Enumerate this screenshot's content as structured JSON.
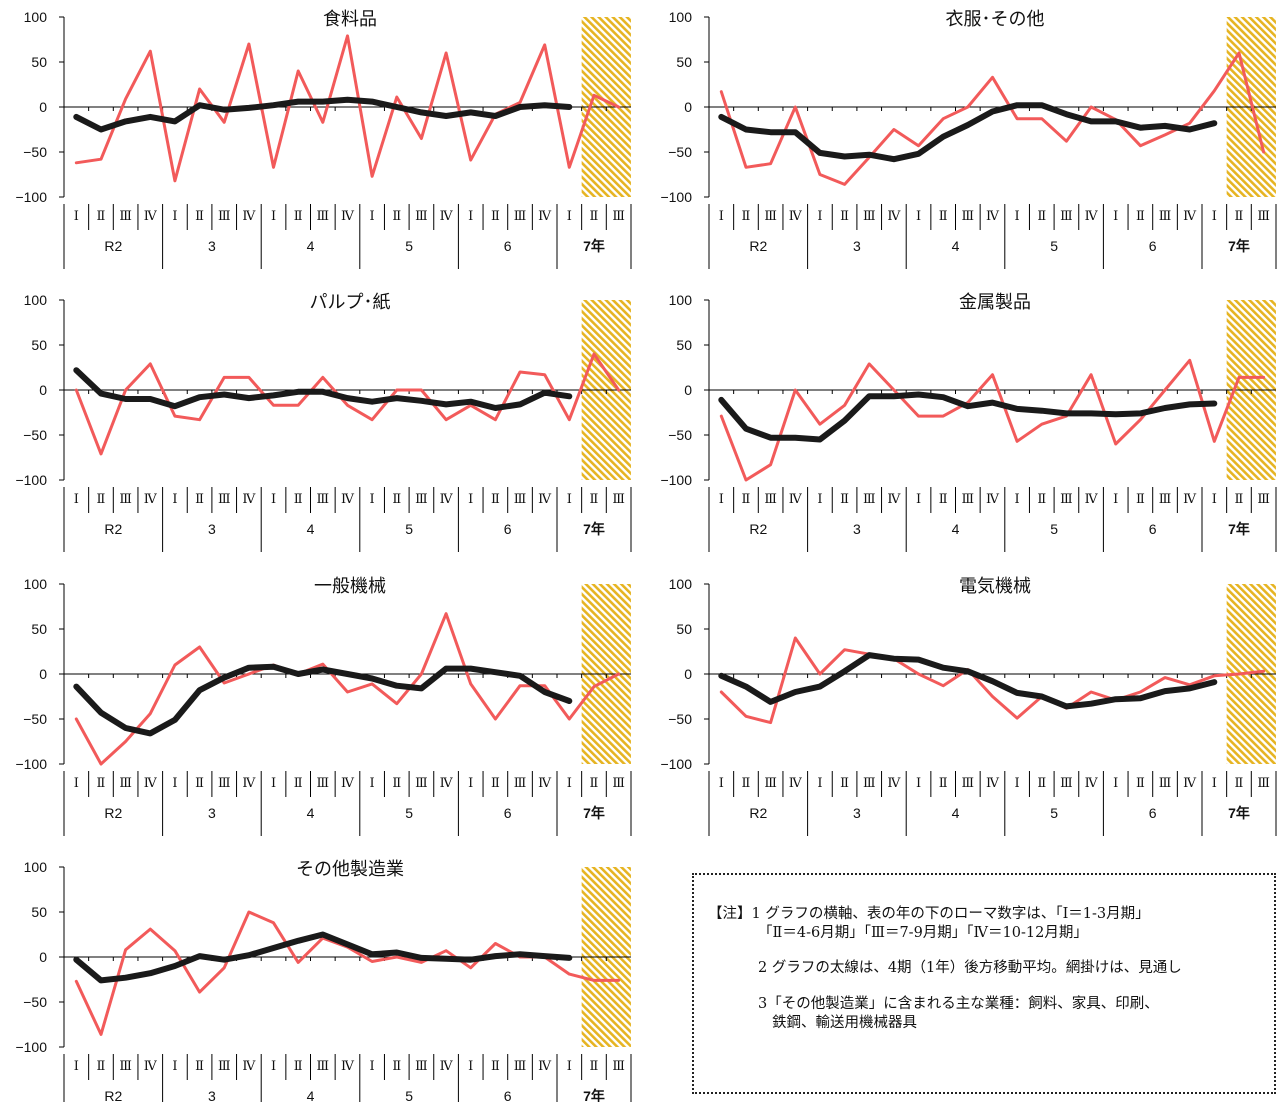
{
  "colors": {
    "actual": "#f25a5a",
    "moving_average": "#1a1a1a",
    "forecast_hatch": "#e6b422"
  },
  "chart_data": [
    {
      "type": "line",
      "title": "食料品",
      "quarter_labels": [
        "Ⅰ",
        "Ⅱ",
        "Ⅲ",
        "Ⅳ",
        "Ⅰ",
        "Ⅱ",
        "Ⅲ",
        "Ⅳ",
        "Ⅰ",
        "Ⅱ",
        "Ⅲ",
        "Ⅳ",
        "Ⅰ",
        "Ⅱ",
        "Ⅲ",
        "Ⅳ",
        "Ⅰ",
        "Ⅱ",
        "Ⅲ",
        "Ⅳ",
        "Ⅰ",
        "Ⅱ",
        "Ⅲ"
      ],
      "year_labels": [
        "R2",
        "3",
        "4",
        "5",
        "6",
        "7年"
      ],
      "ylim": [
        -100,
        100
      ],
      "yticks": [
        100,
        50,
        0,
        -50,
        -100
      ],
      "forecast_quarters": [
        22,
        23
      ],
      "series": [
        {
          "values": [
            -62,
            -58,
            9,
            62,
            -82,
            20,
            -17,
            70,
            -67,
            40,
            -17,
            79,
            -77,
            11,
            -35,
            60,
            -59,
            -8,
            5,
            69,
            -67,
            13,
            0
          ]
        },
        {
          "values": [
            -11,
            -25,
            -16,
            -11,
            -16,
            2,
            -3,
            -1,
            2,
            6,
            6,
            8,
            6,
            0,
            -6,
            -10,
            -6,
            -10,
            0,
            2,
            0
          ]
        }
      ]
    },
    {
      "type": "line",
      "title": "衣服･その他",
      "quarter_labels": [
        "Ⅰ",
        "Ⅱ",
        "Ⅲ",
        "Ⅳ",
        "Ⅰ",
        "Ⅱ",
        "Ⅲ",
        "Ⅳ",
        "Ⅰ",
        "Ⅱ",
        "Ⅲ",
        "Ⅳ",
        "Ⅰ",
        "Ⅱ",
        "Ⅲ",
        "Ⅳ",
        "Ⅰ",
        "Ⅱ",
        "Ⅲ",
        "Ⅳ",
        "Ⅰ",
        "Ⅱ",
        "Ⅲ"
      ],
      "year_labels": [
        "R2",
        "3",
        "4",
        "5",
        "6",
        "7年"
      ],
      "ylim": [
        -100,
        100
      ],
      "yticks": [
        100,
        50,
        0,
        -50,
        -100
      ],
      "forecast_quarters": [
        22,
        23
      ],
      "series": [
        {
          "values": [
            17,
            -67,
            -63,
            0,
            -75,
            -86,
            -56,
            -25,
            -43,
            -13,
            0,
            33,
            -13,
            -13,
            -38,
            0,
            -14,
            -43,
            -31,
            -18,
            18,
            60,
            -50
          ]
        },
        {
          "values": [
            -11,
            -25,
            -28,
            -28,
            -51,
            -55,
            -53,
            -58,
            -52,
            -33,
            -20,
            -5,
            2,
            2,
            -8,
            -16,
            -16,
            -23,
            -21,
            -25,
            -18
          ]
        }
      ]
    },
    {
      "type": "line",
      "title": "パルプ･紙",
      "quarter_labels": [
        "Ⅰ",
        "Ⅱ",
        "Ⅲ",
        "Ⅳ",
        "Ⅰ",
        "Ⅱ",
        "Ⅲ",
        "Ⅳ",
        "Ⅰ",
        "Ⅱ",
        "Ⅲ",
        "Ⅳ",
        "Ⅰ",
        "Ⅱ",
        "Ⅲ",
        "Ⅳ",
        "Ⅰ",
        "Ⅱ",
        "Ⅲ",
        "Ⅳ",
        "Ⅰ",
        "Ⅱ",
        "Ⅲ"
      ],
      "year_labels": [
        "R2",
        "3",
        "4",
        "5",
        "6",
        "7年"
      ],
      "ylim": [
        -100,
        100
      ],
      "yticks": [
        100,
        50,
        0,
        -50,
        -100
      ],
      "forecast_quarters": [
        22,
        23
      ],
      "series": [
        {
          "values": [
            0,
            -71,
            0,
            29,
            -29,
            -33,
            14,
            14,
            -17,
            -17,
            14,
            -17,
            -33,
            0,
            0,
            -33,
            -17,
            -33,
            20,
            17,
            -33,
            40,
            0
          ]
        },
        {
          "values": [
            22,
            -4,
            -10,
            -10,
            -18,
            -8,
            -5,
            -9,
            -6,
            -2,
            -2,
            -9,
            -13,
            -9,
            -12,
            -16,
            -13,
            -20,
            -16,
            -3,
            -7
          ]
        }
      ]
    },
    {
      "type": "line",
      "title": "金属製品",
      "quarter_labels": [
        "Ⅰ",
        "Ⅱ",
        "Ⅲ",
        "Ⅳ",
        "Ⅰ",
        "Ⅱ",
        "Ⅲ",
        "Ⅳ",
        "Ⅰ",
        "Ⅱ",
        "Ⅲ",
        "Ⅳ",
        "Ⅰ",
        "Ⅱ",
        "Ⅲ",
        "Ⅳ",
        "Ⅰ",
        "Ⅱ",
        "Ⅲ",
        "Ⅳ",
        "Ⅰ",
        "Ⅱ",
        "Ⅲ"
      ],
      "year_labels": [
        "R2",
        "3",
        "4",
        "5",
        "6",
        "7年"
      ],
      "ylim": [
        -100,
        100
      ],
      "yticks": [
        100,
        50,
        0,
        -50,
        -100
      ],
      "forecast_quarters": [
        22,
        23
      ],
      "series": [
        {
          "values": [
            -29,
            -100,
            -83,
            0,
            -38,
            -17,
            29,
            0,
            -29,
            -29,
            -14,
            17,
            -57,
            -38,
            -29,
            17,
            -60,
            -33,
            0,
            33,
            -57,
            14,
            14
          ]
        },
        {
          "values": [
            -11,
            -43,
            -53,
            -53,
            -55,
            -34,
            -7,
            -7,
            -5,
            -8,
            -18,
            -14,
            -21,
            -23,
            -26,
            -26,
            -27,
            -26,
            -20,
            -16,
            -15
          ]
        }
      ]
    },
    {
      "type": "line",
      "title": "一般機械",
      "quarter_labels": [
        "Ⅰ",
        "Ⅱ",
        "Ⅲ",
        "Ⅳ",
        "Ⅰ",
        "Ⅱ",
        "Ⅲ",
        "Ⅳ",
        "Ⅰ",
        "Ⅱ",
        "Ⅲ",
        "Ⅳ",
        "Ⅰ",
        "Ⅱ",
        "Ⅲ",
        "Ⅳ",
        "Ⅰ",
        "Ⅱ",
        "Ⅲ",
        "Ⅳ",
        "Ⅰ",
        "Ⅱ",
        "Ⅲ"
      ],
      "year_labels": [
        "R2",
        "3",
        "4",
        "5",
        "6",
        "7年"
      ],
      "ylim": [
        -100,
        100
      ],
      "yticks": [
        100,
        50,
        0,
        -50,
        -100
      ],
      "forecast_quarters": [
        22,
        23
      ],
      "series": [
        {
          "values": [
            -50,
            -100,
            -75,
            -44,
            10,
            30,
            -10,
            0,
            10,
            0,
            11,
            -20,
            -11,
            -33,
            0,
            67,
            -11,
            -50,
            -13,
            -13,
            -50,
            -14,
            0
          ]
        },
        {
          "values": [
            -14,
            -43,
            -60,
            -66,
            -51,
            -18,
            -4,
            7,
            8,
            0,
            5,
            0,
            -5,
            -13,
            -16,
            6,
            6,
            2,
            -2,
            -20,
            -30
          ]
        }
      ]
    },
    {
      "type": "line",
      "title": "電気機械",
      "quarter_labels": [
        "Ⅰ",
        "Ⅱ",
        "Ⅲ",
        "Ⅳ",
        "Ⅰ",
        "Ⅱ",
        "Ⅲ",
        "Ⅳ",
        "Ⅰ",
        "Ⅱ",
        "Ⅲ",
        "Ⅳ",
        "Ⅰ",
        "Ⅱ",
        "Ⅲ",
        "Ⅳ",
        "Ⅰ",
        "Ⅱ",
        "Ⅲ",
        "Ⅳ",
        "Ⅰ",
        "Ⅱ",
        "Ⅲ"
      ],
      "year_labels": [
        "R2",
        "3",
        "4",
        "5",
        "6",
        "7年"
      ],
      "ylim": [
        -100,
        100
      ],
      "yticks": [
        100,
        50,
        0,
        -50,
        -100
      ],
      "forecast_quarters": [
        22,
        23
      ],
      "series": [
        {
          "values": [
            -20,
            -47,
            -54,
            40,
            0,
            27,
            22,
            17,
            0,
            -13,
            5,
            -25,
            -49,
            -25,
            -38,
            -20,
            -29,
            -20,
            -4,
            -12,
            -2,
            0,
            3
          ]
        },
        {
          "values": [
            -2,
            -14,
            -31,
            -20,
            -14,
            3,
            21,
            17,
            16,
            7,
            3,
            -8,
            -21,
            -25,
            -36,
            -33,
            -28,
            -27,
            -19,
            -16,
            -9
          ]
        }
      ]
    },
    {
      "type": "line",
      "title": "その他製造業",
      "quarter_labels": [
        "Ⅰ",
        "Ⅱ",
        "Ⅲ",
        "Ⅳ",
        "Ⅰ",
        "Ⅱ",
        "Ⅲ",
        "Ⅳ",
        "Ⅰ",
        "Ⅱ",
        "Ⅲ",
        "Ⅳ",
        "Ⅰ",
        "Ⅱ",
        "Ⅲ",
        "Ⅳ",
        "Ⅰ",
        "Ⅱ",
        "Ⅲ",
        "Ⅳ",
        "Ⅰ",
        "Ⅱ",
        "Ⅲ"
      ],
      "year_labels": [
        "R2",
        "3",
        "4",
        "5",
        "6",
        "7年"
      ],
      "ylim": [
        -100,
        100
      ],
      "yticks": [
        100,
        50,
        0,
        -50,
        -100
      ],
      "forecast_quarters": [
        22,
        23
      ],
      "series": [
        {
          "values": [
            -27,
            -86,
            8,
            31,
            7,
            -39,
            -12,
            50,
            38,
            -6,
            21,
            11,
            -5,
            0,
            -6,
            7,
            -12,
            15,
            0,
            0,
            -19,
            -26,
            -26
          ]
        },
        {
          "values": [
            -3,
            -26,
            -23,
            -18,
            -10,
            1,
            -3,
            2,
            10,
            18,
            25,
            14,
            3,
            5,
            -1,
            -2,
            -3,
            1,
            3,
            1,
            -1
          ]
        }
      ]
    }
  ],
  "note": {
    "lines": [
      "【注】1 グラフの横軸、表の年の下のローマ数字は、「Ⅰ＝1-3月期」",
      "「Ⅱ＝4-6月期」「Ⅲ＝7-9月期」「Ⅳ＝10-12月期」",
      "2 グラフの太線は、4期（1年）後方移動平均。網掛けは、見通し",
      "3「その他製造業」に含まれる主な業種：飼料、家具、印刷、",
      "鉄鋼、輸送用機械器具"
    ]
  }
}
